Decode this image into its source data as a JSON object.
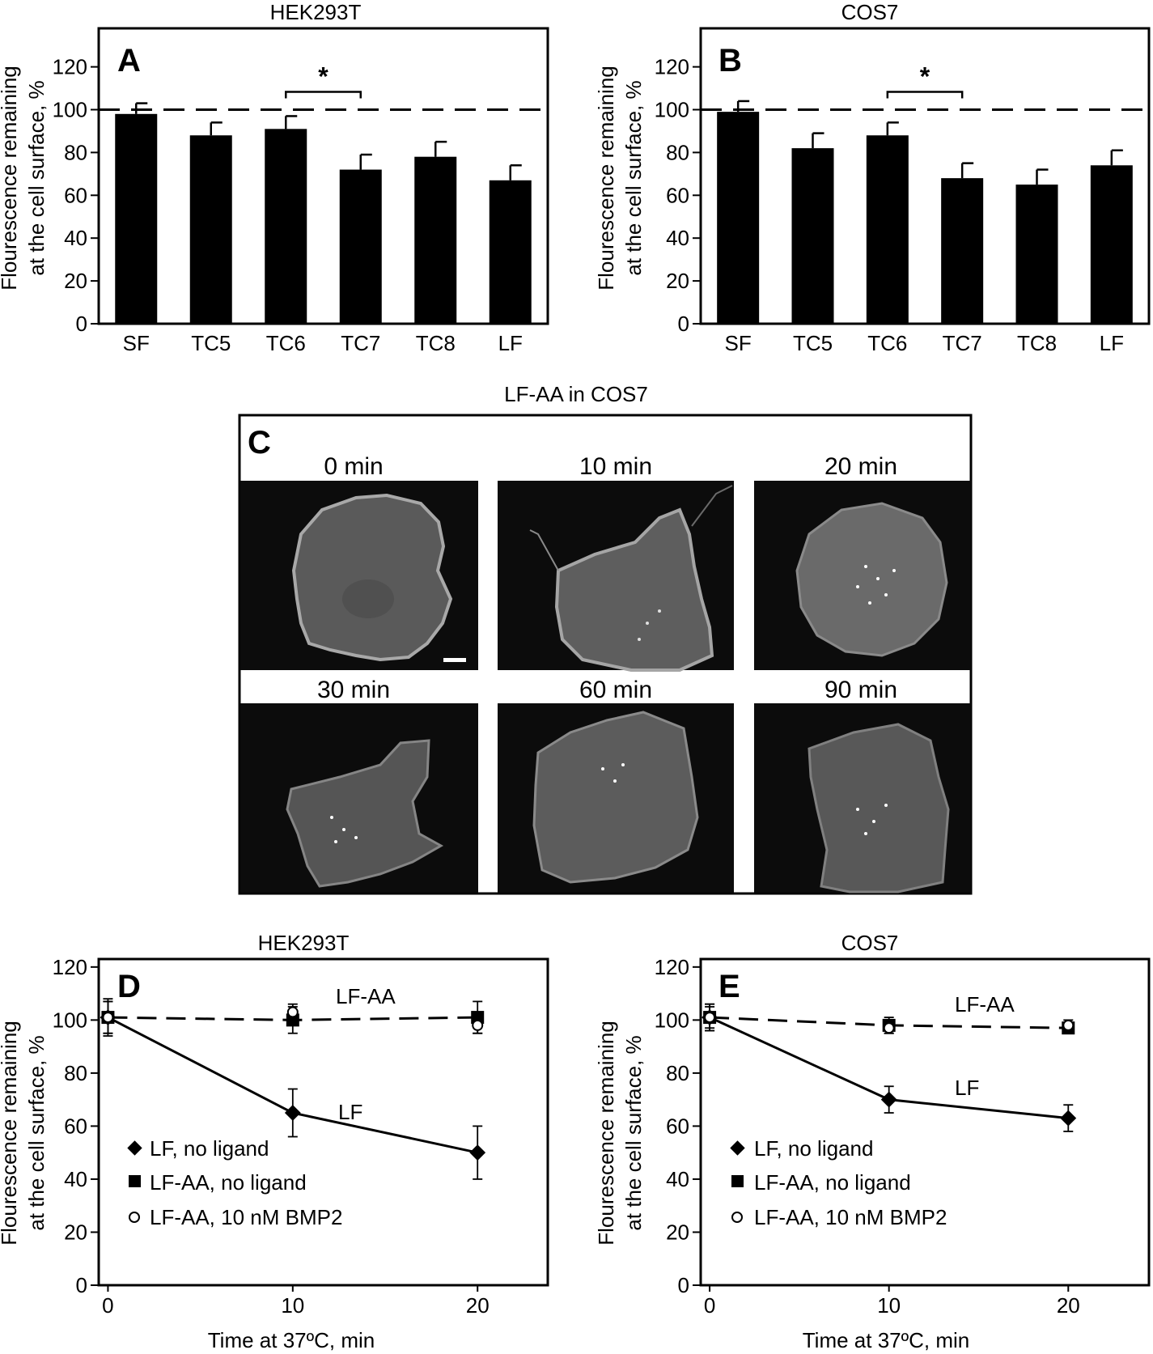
{
  "top_charts": [
    {
      "letter": "A",
      "title": "HEK293T",
      "ylabel_line1": "Flourescence remaining",
      "ylabel_line2": "at the cell surface, %"
    },
    {
      "letter": "B",
      "title": "COS7",
      "ylabel_line1": "Flourescence remaining",
      "ylabel_line2": "at the cell surface, %"
    }
  ],
  "micrograph_panel": {
    "letter": "C",
    "title": "LF-AA in COS7",
    "timepoints": [
      "0 min",
      "10 min",
      "20 min",
      "30 min",
      "60 min",
      "90 min"
    ]
  },
  "bottom_charts": [
    {
      "letter": "D",
      "title": "HEK293T",
      "ylabel_line1": "Flourescence remaining",
      "ylabel_line2": "at the cell surface, %",
      "xlabel": "Time at 37ºC, min",
      "line_label_aa": "LF-AA",
      "line_label_lf": "LF",
      "legend": [
        "LF, no ligand",
        "LF-AA, no ligand",
        "LF-AA, 10 nM BMP2"
      ]
    },
    {
      "letter": "E",
      "title": "COS7",
      "ylabel_line1": "Flourescence remaining",
      "ylabel_line2": "at the cell surface, %",
      "xlabel": "Time at 37ºC, min",
      "line_label_aa": "LF-AA",
      "line_label_lf": "LF",
      "legend": [
        "LF, no ligand",
        "LF-AA, no ligand",
        "LF-AA, 10 nM BMP2"
      ]
    }
  ],
  "chart_data": [
    {
      "type": "bar",
      "title": "HEK293T",
      "panel": "A",
      "categories": [
        "SF",
        "TC5",
        "TC6",
        "TC7",
        "TC8",
        "LF"
      ],
      "values": [
        98,
        88,
        91,
        72,
        78,
        67
      ],
      "errors": [
        5,
        6,
        6,
        7,
        7,
        7
      ],
      "reference_line": 100,
      "significance": {
        "from": "TC6",
        "to": "TC7",
        "label": "*"
      },
      "yticks": [
        0,
        20,
        40,
        60,
        80,
        100,
        120
      ],
      "ylim": [
        0,
        138
      ],
      "ylabel": "Flourescence remaining at the cell surface, %",
      "xlabel": ""
    },
    {
      "type": "bar",
      "title": "COS7",
      "panel": "B",
      "categories": [
        "SF",
        "TC5",
        "TC6",
        "TC7",
        "TC8",
        "LF"
      ],
      "values": [
        99,
        82,
        88,
        68,
        65,
        74
      ],
      "errors": [
        5,
        7,
        6,
        7,
        7,
        7
      ],
      "reference_line": 100,
      "significance": {
        "from": "TC6",
        "to": "TC7",
        "label": "*"
      },
      "yticks": [
        0,
        20,
        40,
        60,
        80,
        100,
        120
      ],
      "ylim": [
        0,
        138
      ],
      "ylabel": "Flourescence remaining at the cell surface, %",
      "xlabel": ""
    },
    {
      "type": "line",
      "title": "HEK293T",
      "panel": "D",
      "x": [
        0,
        10,
        20
      ],
      "xticks": [
        0,
        10,
        20
      ],
      "xlim": [
        -0.5,
        23.8
      ],
      "yticks": [
        0,
        20,
        40,
        60,
        80,
        100,
        120
      ],
      "ylim": [
        0,
        123
      ],
      "xlabel": "Time at 37ºC, min",
      "ylabel": "Flourescence remaining at the cell surface, %",
      "series": [
        {
          "name": "LF, no ligand",
          "marker": "diamond",
          "line": "solid",
          "values": [
            101,
            65,
            50
          ],
          "errors": [
            6,
            9,
            10
          ]
        },
        {
          "name": "LF-AA, no ligand",
          "marker": "square",
          "line": "dashed",
          "values": [
            101,
            100,
            101
          ],
          "errors": [
            6,
            5,
            6
          ]
        },
        {
          "name": "LF-AA, 10 nM BMP2",
          "marker": "open-circle",
          "line": "none",
          "values": [
            101,
            103,
            98
          ],
          "errors": [
            7,
            3,
            3
          ]
        }
      ]
    },
    {
      "type": "line",
      "title": "COS7",
      "panel": "E",
      "x": [
        0,
        10,
        20
      ],
      "xticks": [
        0,
        10,
        20
      ],
      "xlim": [
        -0.5,
        24.5
      ],
      "yticks": [
        0,
        20,
        40,
        60,
        80,
        100,
        120
      ],
      "ylim": [
        0,
        123
      ],
      "xlabel": "Time at 37ºC, min",
      "ylabel": "Flourescence remaining at the cell surface, %",
      "series": [
        {
          "name": "LF, no ligand",
          "marker": "diamond",
          "line": "solid",
          "values": [
            101,
            70,
            63
          ],
          "errors": [
            5,
            5,
            5
          ]
        },
        {
          "name": "LF-AA, no ligand",
          "marker": "square",
          "line": "dashed",
          "values": [
            101,
            98,
            97
          ],
          "errors": [
            5,
            3,
            2
          ]
        },
        {
          "name": "LF-AA, 10 nM BMP2",
          "marker": "open-circle",
          "line": "none",
          "values": [
            101,
            97,
            98
          ],
          "errors": [
            4,
            2,
            2
          ]
        }
      ]
    }
  ]
}
